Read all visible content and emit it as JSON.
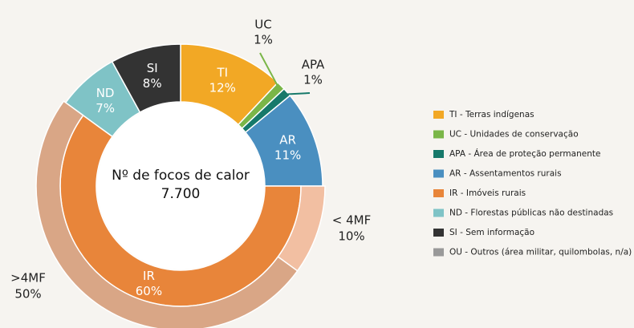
{
  "chart_data": {
    "type": "donut",
    "center_label": "Nº de focos de calor",
    "center_value": "7.700",
    "inner": {
      "categories": [
        "TI",
        "UC",
        "APA",
        "AR",
        "IR",
        "ND",
        "SI"
      ],
      "values": [
        12,
        1,
        1,
        11,
        60,
        7,
        8
      ],
      "value_labels": [
        "12%",
        "1%",
        "1%",
        "11%",
        "60%",
        "7%",
        "8%"
      ],
      "colors": [
        "#f2a825",
        "#7ab648",
        "#16796a",
        "#4a8fc0",
        "#e8853a",
        "#7fc3c6",
        "#333333"
      ]
    },
    "outer": {
      "parent": "IR",
      "categories": [
        "< 4MF",
        ">4MF"
      ],
      "values": [
        10,
        50
      ],
      "value_labels": [
        "10%",
        "50%"
      ],
      "colors": [
        "#f2bfa2",
        "#d9a686"
      ]
    },
    "legend": [
      {
        "label": "TI - Terras indígenas",
        "color": "#f2a825"
      },
      {
        "label": "UC - Unidades de conservação",
        "color": "#7ab648"
      },
      {
        "label": "APA - Área de proteção permanente",
        "color": "#16796a"
      },
      {
        "label": "AR - Assentamentos rurais",
        "color": "#4a8fc0"
      },
      {
        "label": "IR - Imóveis rurais",
        "color": "#e8853a"
      },
      {
        "label": "ND - Florestas públicas não destinadas",
        "color": "#7fc3c6"
      },
      {
        "label": "SI - Sem informação",
        "color": "#333333"
      },
      {
        "label": "OU - Outros (área militar, quilombolas, n/a)",
        "color": "#999999"
      }
    ]
  }
}
